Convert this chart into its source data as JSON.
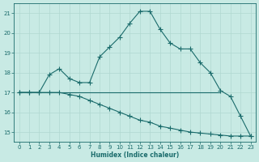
{
  "xlabel": "Humidex (Indice chaleur)",
  "xlim": [
    -0.5,
    23.5
  ],
  "ylim": [
    14.5,
    21.5
  ],
  "yticks": [
    15,
    16,
    17,
    18,
    19,
    20,
    21
  ],
  "xticks": [
    0,
    1,
    2,
    3,
    4,
    5,
    6,
    7,
    8,
    9,
    10,
    11,
    12,
    13,
    14,
    15,
    16,
    17,
    18,
    19,
    20,
    21,
    22,
    23
  ],
  "bg_color": "#c8eae4",
  "grid_color": "#b0d8d0",
  "line_color": "#1a6b6b",
  "line1_x": [
    0,
    1,
    2,
    3,
    4,
    5,
    6,
    7,
    8,
    9,
    10,
    11,
    12,
    13,
    14,
    15,
    16,
    17,
    18,
    19,
    20,
    21,
    22,
    23
  ],
  "line1_y": [
    17.0,
    17.0,
    17.0,
    17.9,
    18.2,
    17.7,
    17.5,
    17.5,
    18.8,
    19.3,
    19.8,
    20.5,
    21.1,
    21.1,
    20.2,
    19.5,
    19.2,
    19.2,
    18.5,
    18.0,
    17.1,
    16.8,
    15.8,
    14.8
  ],
  "line2_x": [
    0,
    20
  ],
  "line2_y": [
    17.0,
    17.0
  ],
  "line3_x": [
    0,
    1,
    2,
    3,
    4,
    5,
    6,
    7,
    8,
    9,
    10,
    11,
    12,
    13,
    14,
    15,
    16,
    17,
    18,
    19,
    20,
    21,
    22,
    23
  ],
  "line3_y": [
    17.0,
    17.0,
    17.0,
    17.0,
    17.0,
    16.9,
    16.8,
    16.6,
    16.4,
    16.2,
    16.0,
    15.8,
    15.6,
    15.5,
    15.3,
    15.2,
    15.1,
    15.0,
    14.95,
    14.9,
    14.85,
    14.8,
    14.8,
    14.8
  ]
}
